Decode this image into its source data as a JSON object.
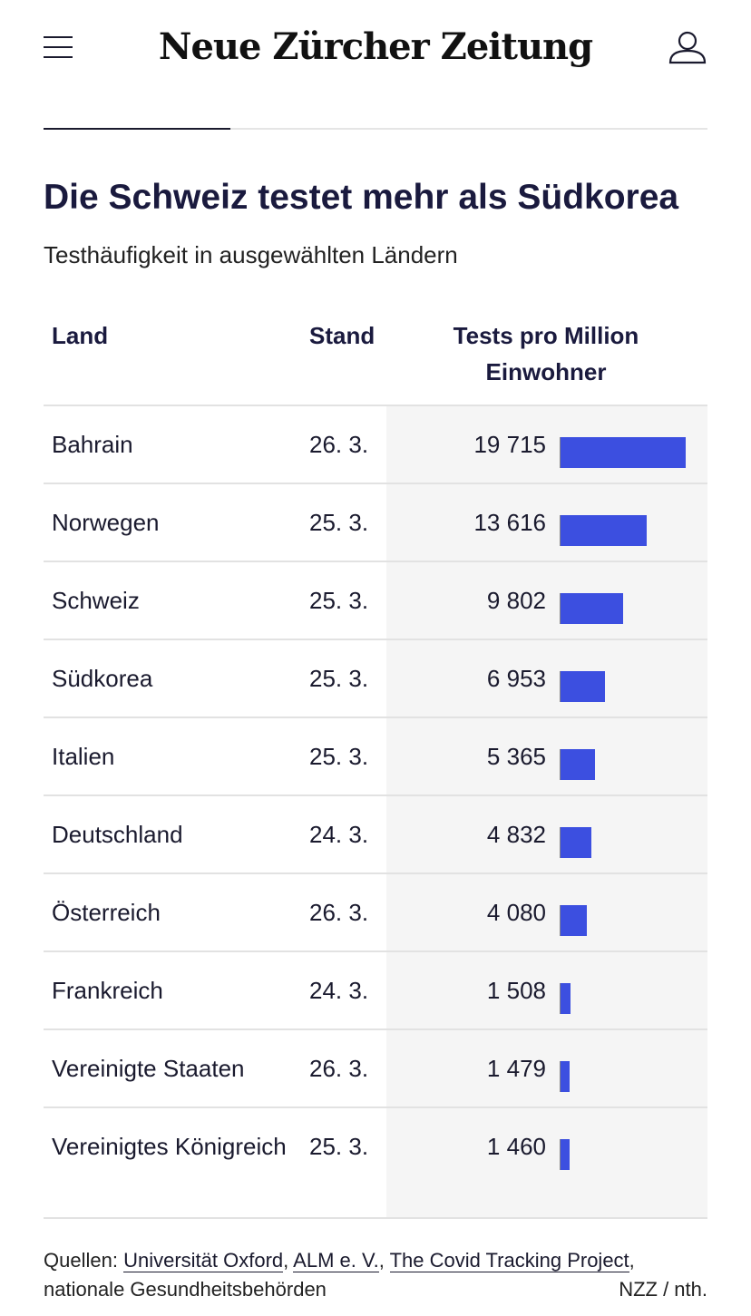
{
  "header": {
    "logo_text": "Neue Zürcher Zeitung"
  },
  "article": {
    "title": "Die Schweiz testet mehr als Südkorea",
    "subtitle": "Testhäufigkeit in ausgewählten Ländern"
  },
  "table": {
    "columns": {
      "land": "Land",
      "stand": "Stand",
      "tests": "Tests pro Million Einwohner"
    },
    "rows": [
      {
        "land": "Bahrain",
        "stand": "26. 3.",
        "value_text": "19 715",
        "value": 19715
      },
      {
        "land": "Norwegen",
        "stand": "25. 3.",
        "value_text": "13 616",
        "value": 13616
      },
      {
        "land": "Schweiz",
        "stand": "25. 3.",
        "value_text": "9 802",
        "value": 9802
      },
      {
        "land": "Südkorea",
        "stand": "25. 3.",
        "value_text": "6 953",
        "value": 6953
      },
      {
        "land": "Italien",
        "stand": "25. 3.",
        "value_text": "5 365",
        "value": 5365
      },
      {
        "land": "Deutschland",
        "stand": "24. 3.",
        "value_text": "4 832",
        "value": 4832
      },
      {
        "land": "Österreich",
        "stand": "26. 3.",
        "value_text": "4 080",
        "value": 4080
      },
      {
        "land": "Frankreich",
        "stand": "24. 3.",
        "value_text": "1 508",
        "value": 1508
      },
      {
        "land": "Vereinigte Staaten",
        "stand": "26. 3.",
        "value_text": "1 479",
        "value": 1479
      },
      {
        "land": "Vereinigtes Königreich",
        "stand": "25. 3.",
        "value_text": "1 460",
        "value": 1460
      }
    ],
    "bar_color": "#3c4fe0"
  },
  "footer": {
    "sources_label": "Quellen:",
    "sources": [
      "Universität Oxford",
      "ALM e. V.",
      "The Covid Tracking Project"
    ],
    "sources_tail": "nationale Gesundheitsbehörden",
    "credit": "NZZ / nth."
  }
}
